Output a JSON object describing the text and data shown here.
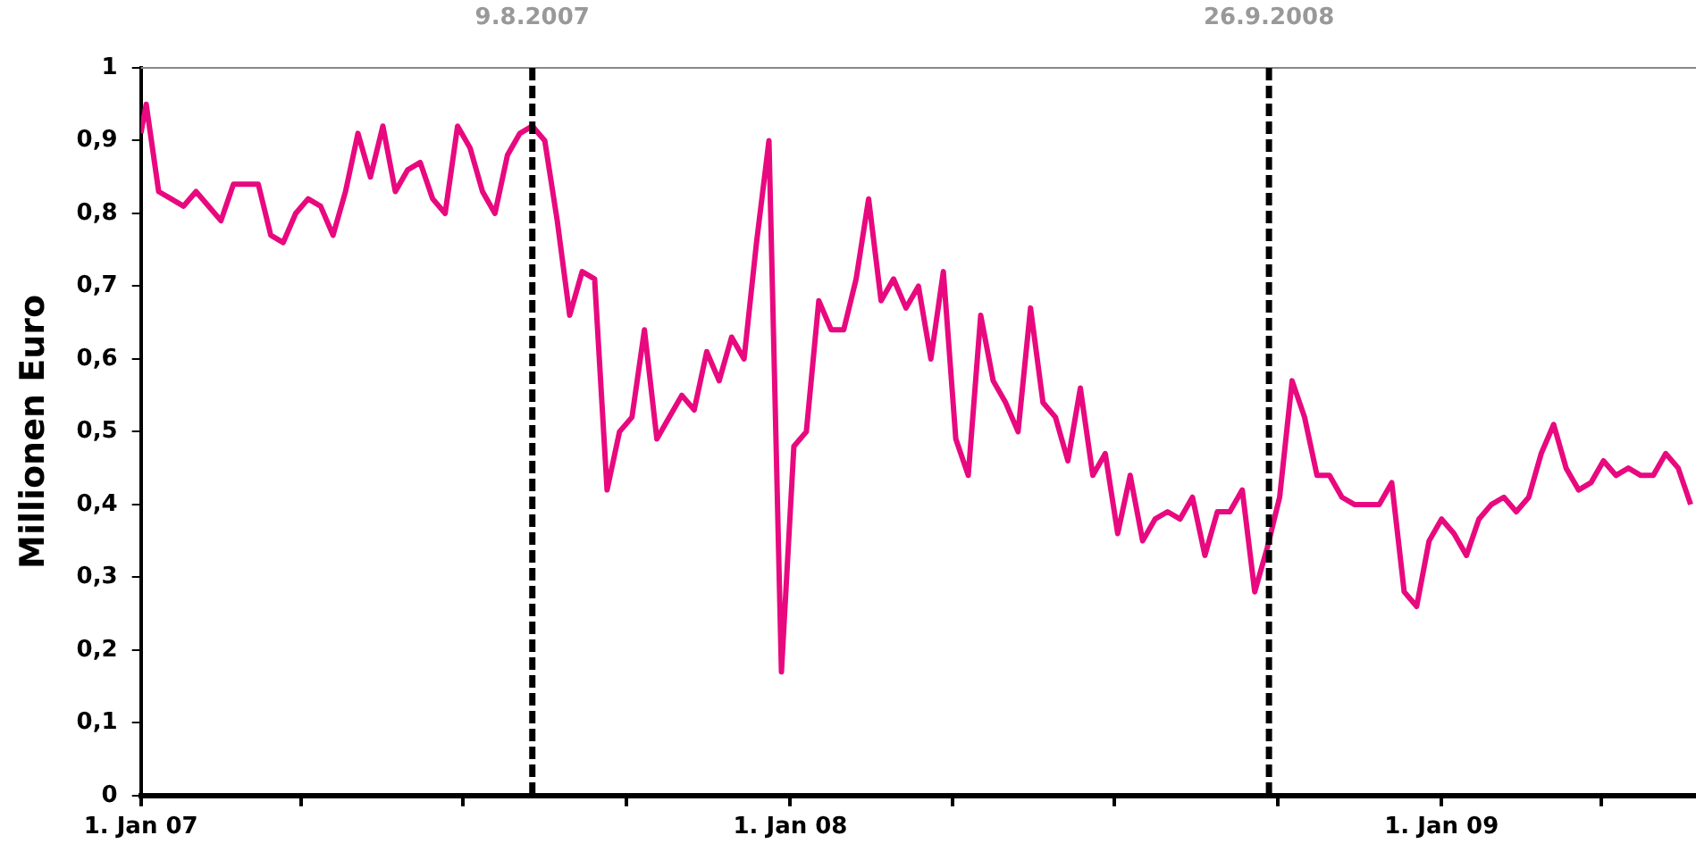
{
  "chart_data": {
    "type": "line",
    "ylabel": "Millionen Euro",
    "x": [
      "2007-01-01",
      "2007-01-04",
      "2007-01-11",
      "2007-01-18",
      "2007-01-25",
      "2007-02-01",
      "2007-02-08",
      "2007-02-15",
      "2007-02-22",
      "2007-03-01",
      "2007-03-08",
      "2007-03-15",
      "2007-03-22",
      "2007-03-29",
      "2007-04-05",
      "2007-04-12",
      "2007-04-19",
      "2007-04-26",
      "2007-05-03",
      "2007-05-10",
      "2007-05-17",
      "2007-05-24",
      "2007-05-31",
      "2007-06-07",
      "2007-06-14",
      "2007-06-21",
      "2007-06-28",
      "2007-07-05",
      "2007-07-12",
      "2007-07-19",
      "2007-07-26",
      "2007-08-02",
      "2007-08-09",
      "2007-08-16",
      "2007-08-23",
      "2007-08-30",
      "2007-09-06",
      "2007-09-13",
      "2007-09-20",
      "2007-09-27",
      "2007-10-04",
      "2007-10-11",
      "2007-10-18",
      "2007-10-25",
      "2007-11-01",
      "2007-11-08",
      "2007-11-15",
      "2007-11-22",
      "2007-11-29",
      "2007-12-06",
      "2007-12-13",
      "2007-12-20",
      "2007-12-27",
      "2008-01-03",
      "2008-01-10",
      "2008-01-17",
      "2008-01-24",
      "2008-01-31",
      "2008-02-07",
      "2008-02-14",
      "2008-02-21",
      "2008-02-28",
      "2008-03-06",
      "2008-03-13",
      "2008-03-20",
      "2008-03-27",
      "2008-04-03",
      "2008-04-10",
      "2008-04-17",
      "2008-04-24",
      "2008-05-01",
      "2008-05-08",
      "2008-05-15",
      "2008-05-22",
      "2008-05-29",
      "2008-06-05",
      "2008-06-12",
      "2008-06-19",
      "2008-06-26",
      "2008-07-03",
      "2008-07-10",
      "2008-07-17",
      "2008-07-24",
      "2008-07-31",
      "2008-08-07",
      "2008-08-14",
      "2008-08-21",
      "2008-08-28",
      "2008-09-04",
      "2008-09-11",
      "2008-09-18",
      "2008-09-25",
      "2008-10-02",
      "2008-10-09",
      "2008-10-16",
      "2008-10-23",
      "2008-10-30",
      "2008-11-06",
      "2008-11-13",
      "2008-11-20",
      "2008-11-27",
      "2008-12-04",
      "2008-12-11",
      "2008-12-18",
      "2008-12-25",
      "2009-01-01",
      "2009-01-08",
      "2009-01-15",
      "2009-01-22",
      "2009-01-29",
      "2009-02-05",
      "2009-02-12",
      "2009-02-19",
      "2009-02-26",
      "2009-03-05",
      "2009-03-12",
      "2009-03-19",
      "2009-03-26",
      "2009-04-02",
      "2009-04-09",
      "2009-04-16",
      "2009-04-23",
      "2009-04-30",
      "2009-05-07",
      "2009-05-14",
      "2009-05-21"
    ],
    "series": [
      {
        "color": "#e8097f",
        "values": [
          0.91,
          0.95,
          0.83,
          0.82,
          0.81,
          0.83,
          0.81,
          0.79,
          0.84,
          0.84,
          0.84,
          0.77,
          0.76,
          0.8,
          0.82,
          0.81,
          0.77,
          0.83,
          0.91,
          0.85,
          0.92,
          0.83,
          0.86,
          0.87,
          0.82,
          0.8,
          0.92,
          0.89,
          0.83,
          0.8,
          0.88,
          0.91,
          0.92,
          0.9,
          0.79,
          0.66,
          0.72,
          0.71,
          0.42,
          0.5,
          0.52,
          0.64,
          0.49,
          0.52,
          0.55,
          0.53,
          0.61,
          0.57,
          0.63,
          0.6,
          0.76,
          0.9,
          0.17,
          0.48,
          0.5,
          0.68,
          0.64,
          0.64,
          0.71,
          0.82,
          0.68,
          0.71,
          0.67,
          0.7,
          0.6,
          0.72,
          0.49,
          0.44,
          0.66,
          0.57,
          0.54,
          0.5,
          0.67,
          0.54,
          0.52,
          0.46,
          0.56,
          0.44,
          0.47,
          0.36,
          0.44,
          0.35,
          0.38,
          0.39,
          0.38,
          0.41,
          0.33,
          0.39,
          0.39,
          0.42,
          0.28,
          0.34,
          0.41,
          0.57,
          0.52,
          0.44,
          0.44,
          0.41,
          0.4,
          0.4,
          0.4,
          0.43,
          0.28,
          0.26,
          0.35,
          0.38,
          0.36,
          0.33,
          0.38,
          0.4,
          0.41,
          0.39,
          0.41,
          0.47,
          0.51,
          0.45,
          0.42,
          0.43,
          0.46,
          0.44,
          0.45,
          0.44,
          0.44,
          0.47,
          0.45,
          0.4
        ]
      }
    ],
    "xlim": [
      "2007-01-01",
      "2009-05-24"
    ],
    "xticks": [
      {
        "value": "2007-01-01",
        "label": "1. Jan 07"
      },
      {
        "value": "2007-04-01",
        "label": null
      },
      {
        "value": "2007-07-01",
        "label": null
      },
      {
        "value": "2007-10-01",
        "label": null
      },
      {
        "value": "2008-01-01",
        "label": "1. Jan 08"
      },
      {
        "value": "2008-04-01",
        "label": null
      },
      {
        "value": "2008-07-01",
        "label": null
      },
      {
        "value": "2008-10-01",
        "label": null
      },
      {
        "value": "2009-01-01",
        "label": "1. Jan 09"
      },
      {
        "value": "2009-04-01",
        "label": null
      }
    ],
    "ylim": [
      0,
      1
    ],
    "yticks": [
      0,
      {
        "value": 0.1,
        "label": "0,1"
      },
      {
        "value": 0.2,
        "label": "0,2"
      },
      {
        "value": 0.3,
        "label": "0,3"
      },
      {
        "value": 0.4,
        "label": "0,4"
      },
      {
        "value": 0.5,
        "label": "0,5"
      },
      {
        "value": 0.6,
        "label": "0,6"
      },
      {
        "value": 0.7,
        "label": "0,7"
      },
      {
        "value": 0.8,
        "label": "0,8"
      },
      {
        "value": 0.9,
        "label": "0,9"
      },
      1
    ],
    "ref_lines": [
      {
        "axis": "x",
        "value": "2007-08-09",
        "label": "9.8.2007",
        "color": "#000000",
        "line_style": "dashed"
      },
      {
        "axis": "x",
        "value": "2008-09-26",
        "label": "26.9.2008",
        "color": "#000000",
        "line_style": "dashed"
      }
    ],
    "line_style": "solid"
  }
}
